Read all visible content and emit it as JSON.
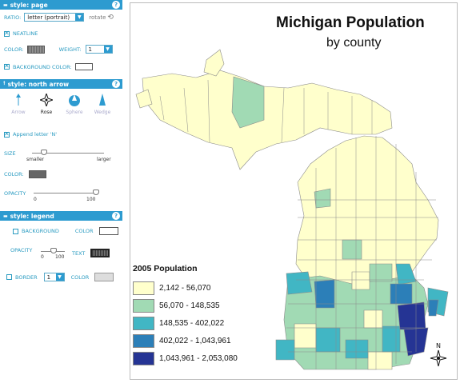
{
  "panel": {
    "page": {
      "header": "style: page",
      "ratio_label": "RATIO:",
      "ratio_value": "letter (portrait)",
      "rotate_label": "rotate",
      "neatline_label": "NEATLINE",
      "color_label": "COLOR:",
      "weight_label": "WEIGHT:",
      "weight_value": "1",
      "bgcolor_label": "BACKGROUND COLOR:"
    },
    "north_arrow": {
      "header": "style: north arrow",
      "options": [
        "Arrow",
        "Rose",
        "Sphere",
        "Wedge"
      ],
      "selected": "Rose",
      "append_label": "Append letter 'N'",
      "size_label": "SIZE",
      "size_min": "smaller",
      "size_max": "larger",
      "size_level": 0.15,
      "color_label": "COLOR:",
      "opacity_label": "OPACITY",
      "opacity_min": "0",
      "opacity_max": "100",
      "opacity_level": 1.0
    },
    "legend": {
      "header": "style: legend",
      "background_label": "BACKGROUND",
      "color_label": "COLOR",
      "opacity_label": "OPACITY",
      "opacity_min": "0",
      "opacity_max": "100",
      "opacity_level": 0.5,
      "text_label": "TEXT",
      "border_label": "BORDER",
      "border_value": "1",
      "border_color_label": "COLOR"
    },
    "help": "?"
  },
  "map": {
    "title": "Michigan Population",
    "subtitle": "by county",
    "north_letter": "N",
    "legend_title": "2005 Population",
    "classes": [
      {
        "label": "2,142 - 56,070",
        "color": "#ffffcc"
      },
      {
        "label": "56,070 - 148,535",
        "color": "#a1dab4"
      },
      {
        "label": "148,535 - 402,022",
        "color": "#41b6c4"
      },
      {
        "label": "402,022 - 1,043,961",
        "color": "#2c7fb8"
      },
      {
        "label": "1,043,961 - 2,053,080",
        "color": "#253494"
      }
    ]
  }
}
